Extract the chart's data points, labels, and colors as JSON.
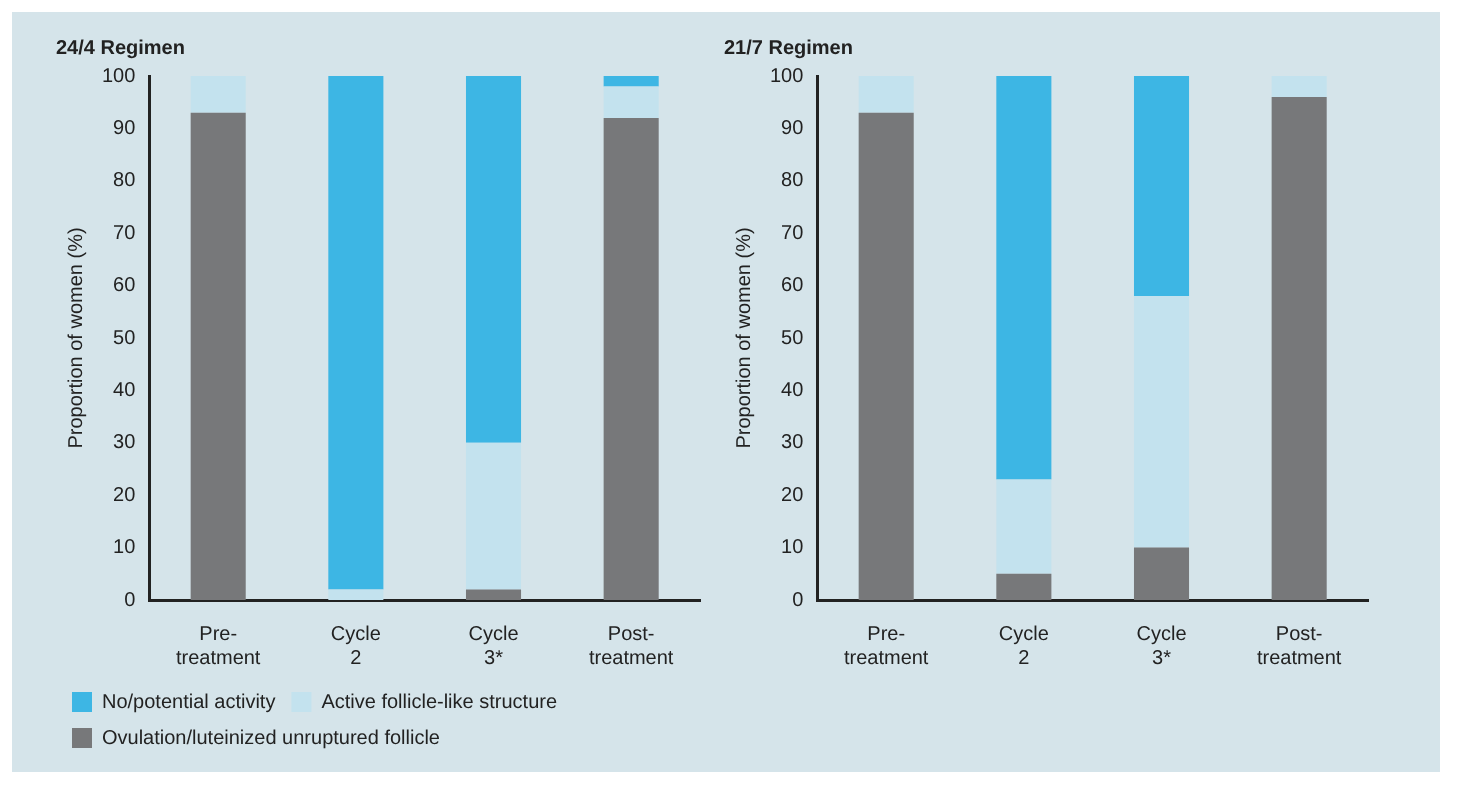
{
  "chart_data": [
    {
      "type": "bar",
      "title": "24/4 Regimen",
      "ylabel": "Proportion of women (%)",
      "categories": [
        "Pre-\ntreatment",
        "Cycle\n2",
        "Cycle\n3*",
        "Post-\ntreatment"
      ],
      "stacked": true,
      "ylim": [
        0,
        100
      ],
      "yticks": [
        0,
        10,
        20,
        30,
        40,
        50,
        60,
        70,
        80,
        90,
        100
      ],
      "legend": "bottom",
      "series": [
        {
          "name": "Ovulation/luteinized unruptured follicle",
          "color": "#77787a",
          "values": [
            93,
            0,
            2,
            92
          ]
        },
        {
          "name": "Active follicle-like structure",
          "color": "#c3e2ee",
          "values": [
            7,
            2,
            28,
            6
          ]
        },
        {
          "name": "No/potential activity",
          "color": "#3db6e4",
          "values": [
            0,
            98,
            70,
            2
          ]
        }
      ]
    },
    {
      "type": "bar",
      "title": "21/7 Regimen",
      "ylabel": "Proportion of women (%)",
      "categories": [
        "Pre-\ntreatment",
        "Cycle\n2",
        "Cycle\n3*",
        "Post-\ntreatment"
      ],
      "stacked": true,
      "ylim": [
        0,
        100
      ],
      "yticks": [
        0,
        10,
        20,
        30,
        40,
        50,
        60,
        70,
        80,
        90,
        100
      ],
      "series": [
        {
          "color": "#77787a",
          "values": [
            93,
            5,
            10,
            96
          ]
        },
        {
          "color": "#c3e2ee",
          "values": [
            7,
            18,
            48,
            4
          ]
        },
        {
          "color": "#3db6e4",
          "values": [
            0,
            77,
            42,
            0
          ]
        }
      ]
    }
  ]
}
